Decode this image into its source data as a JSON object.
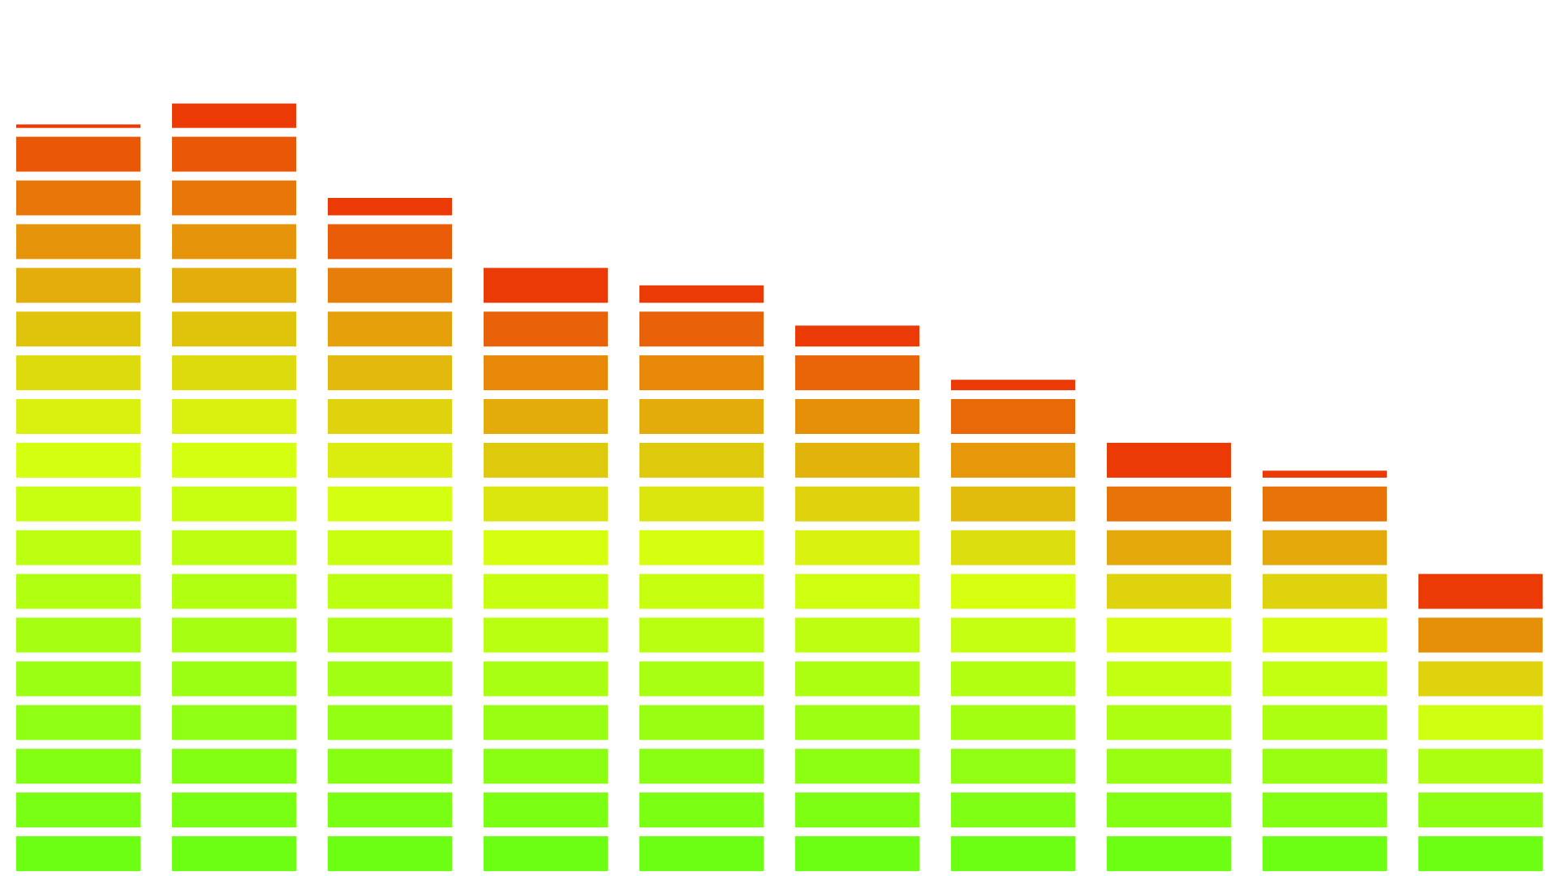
{
  "chart_data": {
    "type": "bar",
    "values": [
      17.1,
      17.7,
      15.5,
      14,
      13.5,
      12.6,
      11.3,
      10,
      9.2,
      7
    ]
  }
}
